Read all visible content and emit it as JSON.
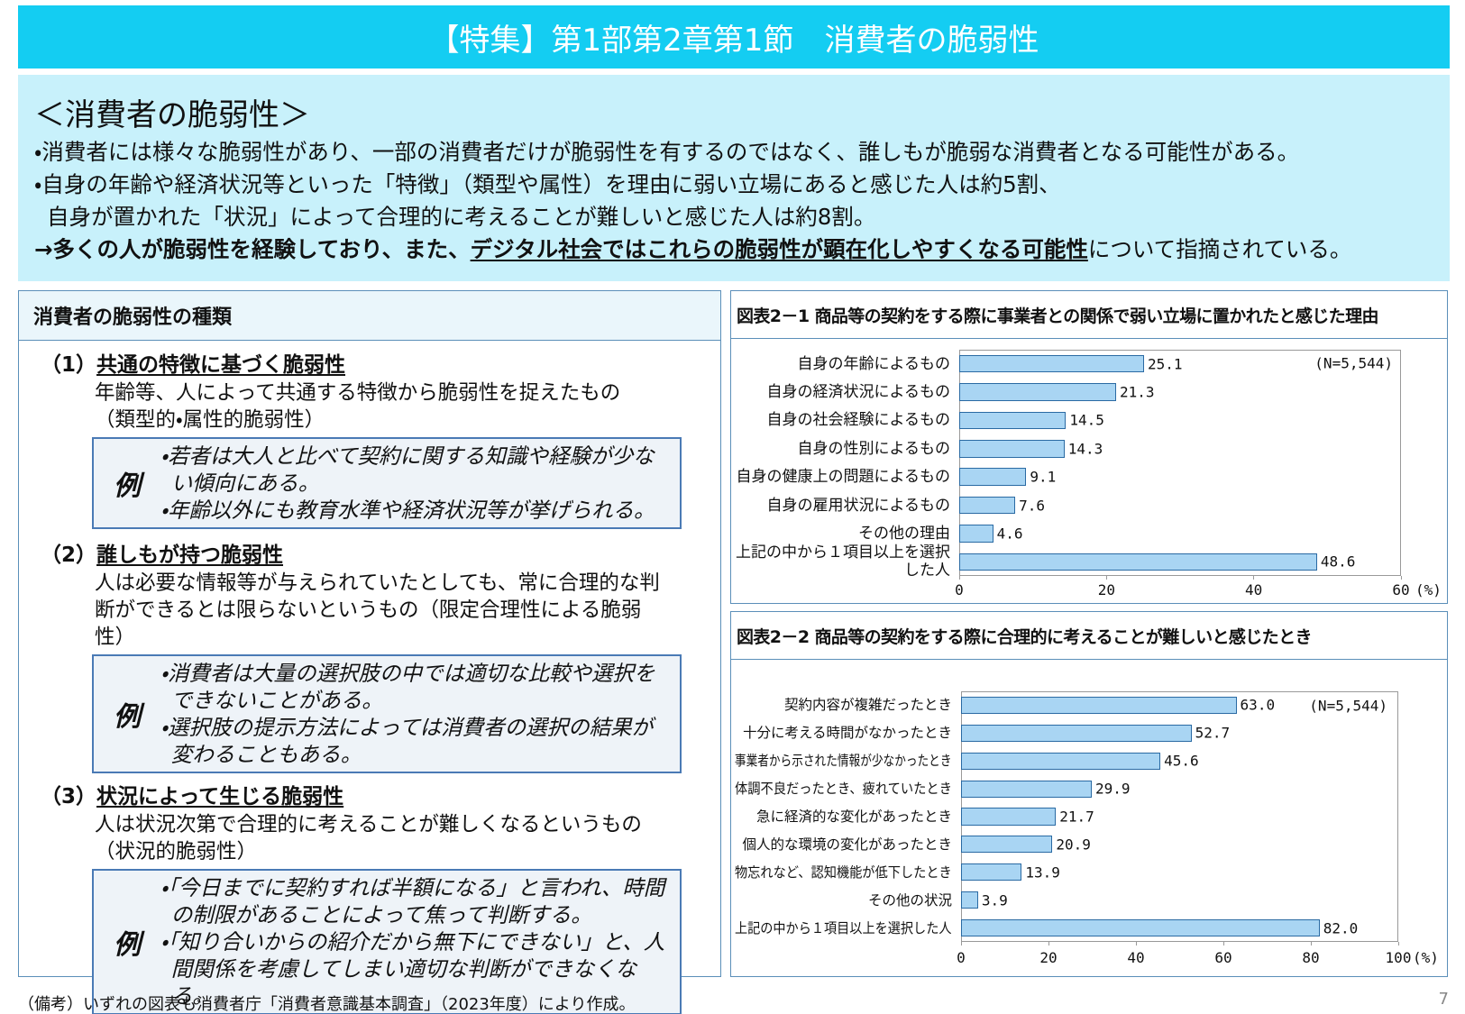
{
  "header": {
    "title": "【特集】第1部第2章第1節　消費者の脆弱性"
  },
  "summary": {
    "heading": "＜消費者の脆弱性＞",
    "bullet1": "・消費者には様々な脆弱性があり、一部の消費者だけが脆弱性を有するのではなく、誰しもが脆弱な消費者となる可能性がある。",
    "bullet2": [
      "・自身の年齢や経済状況等といった「特徴」（類型や属性）を理由に弱い立場にあると感じた人は約5割、",
      "自身が置かれた「状況」によって合理的に考えることが難しいと感じた人は約8割。"
    ],
    "conclusion": {
      "prefix": "→多くの人が脆弱性を経験しており、また、",
      "emphasis": "デジタル社会ではこれらの脆弱性が顕在化しやすくなる可能性",
      "suffix": "について指摘されている。"
    }
  },
  "left_panel": {
    "title": "消費者の脆弱性の種類",
    "sections": [
      {
        "number": "（1）",
        "title": "共通の特徴に基づく脆弱性",
        "description": [
          "年齢等、人によって共通する特徴から脆弱性を捉えたもの",
          "（類型的・属性的脆弱性）"
        ],
        "example_label": "例",
        "examples": [
          "・若者は大人と比べて契約に関する知識や経験が少ない傾向にある。",
          "・年齢以外にも教育水準や経済状況等が挙げられる。"
        ]
      },
      {
        "number": "（2）",
        "title": "誰しもが持つ脆弱性",
        "description": [
          "人は必要な情報等が与えられていたとしても、常に合理的な判断ができるとは限らないというもの（限定合理性による脆弱性）"
        ],
        "example_label": "例",
        "examples": [
          "・消費者は大量の選択肢の中では適切な比較や選択をできないことがある。",
          "・選択肢の提示方法によっては消費者の選択の結果が変わることもある。"
        ]
      },
      {
        "number": "（3）",
        "title": "状況によって生じる脆弱性",
        "description": [
          "人は状況次第で合理的に考えることが難しくなるというもの",
          "（状況的脆弱性）"
        ],
        "example_label": "例",
        "examples": [
          "・「今日までに契約すれば半額になる」と言われ、時間の制限があることによって焦って判断する。",
          "・「知り合いからの紹介だから無下にできない」と、人間関係を考慮してしまい適切な判断ができなくなる。"
        ]
      }
    ]
  },
  "chart_data": [
    {
      "type": "bar",
      "orientation": "horizontal",
      "title": "図表2－1 商品等の契約をする際に事業者との関係で弱い立場に置かれたと感じた理由",
      "categories": [
        "自身の年齢によるもの",
        "自身の経済状況によるもの",
        "自身の社会経験によるもの",
        "自身の性別によるもの",
        "自身の健康上の問題によるもの",
        "自身の雇用状況によるもの",
        "その他の理由",
        "上記の中から１項目以上を選択した人"
      ],
      "values": [
        25.1,
        21.3,
        14.5,
        14.3,
        9.1,
        7.6,
        4.6,
        48.6
      ],
      "note": "(N=5,544)",
      "xlim": [
        0,
        60
      ],
      "xticks": [
        0,
        20,
        40,
        60
      ],
      "unit": "(%)",
      "color": "#a9d5f3"
    },
    {
      "type": "bar",
      "orientation": "horizontal",
      "title": "図表2－2 商品等の契約をする際に合理的に考えることが難しいと感じたとき",
      "categories": [
        "契約内容が複雑だったとき",
        "十分に考える時間がなかったとき",
        "事業者から示された情報が少なかったとき",
        "体調不良だったとき、疲れていたとき",
        "急に経済的な変化があったとき",
        "個人的な環境の変化があったとき",
        "物忘れなど、認知機能が低下したとき",
        "その他の状況",
        "上記の中から１項目以上を選択した人"
      ],
      "values": [
        63.0,
        52.7,
        45.6,
        29.9,
        21.7,
        20.9,
        13.9,
        3.9,
        82.0
      ],
      "value_labels": [
        "63.0",
        "52.7",
        "45.6",
        "29.9",
        "21.7",
        "20.9",
        "13.9",
        "3.9",
        "82.0"
      ],
      "note": "(N=5,544)",
      "xlim": [
        0,
        100
      ],
      "xticks": [
        0,
        20,
        40,
        60,
        80,
        100
      ],
      "unit": "(%)",
      "color": "#a9d5f3"
    }
  ],
  "footer": {
    "note": "（備考）いずれの図表も消費者庁「消費者意識基本調査」（2023年度）により作成。",
    "page": "7"
  }
}
